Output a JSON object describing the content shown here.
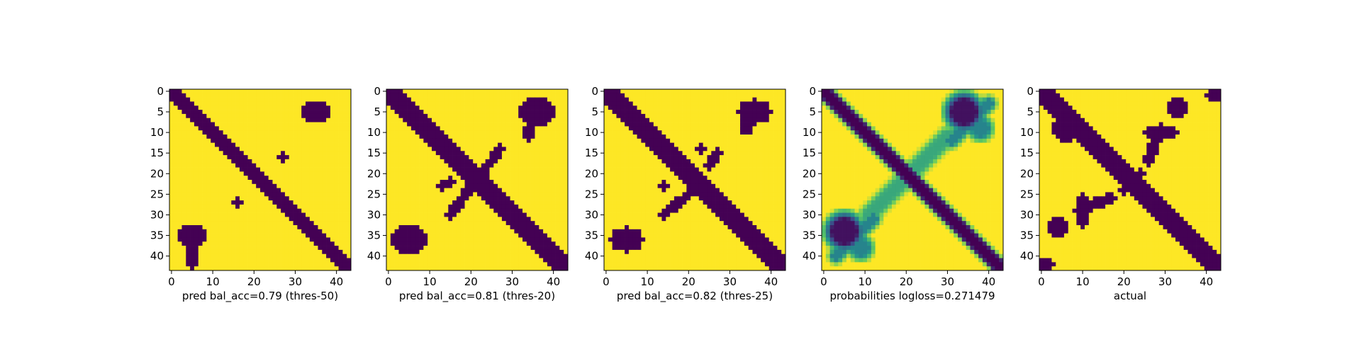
{
  "figure": {
    "background": "#ffffff"
  },
  "colors": {
    "low": "#440154",
    "high": "#fde725",
    "viridis_stops": [
      "#440154",
      "#3b528b",
      "#21918c",
      "#5ec962",
      "#fde725"
    ]
  },
  "chart_data": [
    {
      "type": "heatmap",
      "title": "pred bal_acc=0.79 (thres-50)",
      "grid_size": 44,
      "xlim": [
        0,
        43
      ],
      "ylim": [
        43,
        0
      ],
      "xticks": [
        0,
        10,
        20,
        30,
        40
      ],
      "yticks": [
        0,
        5,
        10,
        15,
        20,
        25,
        30,
        35,
        40
      ],
      "value_range": [
        0,
        1
      ],
      "diagonal_band": {
        "from": [
          0,
          0
        ],
        "to": [
          43,
          43
        ],
        "half_width": 1.6,
        "value": 0
      },
      "blobs": [
        {
          "center": [
            35,
            5
          ],
          "radius": [
            3,
            2
          ],
          "value": 0
        },
        {
          "center": [
            5,
            35
          ],
          "radius": [
            3,
            2
          ],
          "value": 0
        },
        {
          "center": [
            27,
            16
          ],
          "radius": [
            0.8,
            0.8
          ],
          "value": 0
        },
        {
          "center": [
            16,
            27
          ],
          "radius": [
            0.8,
            0.8
          ],
          "value": 0
        },
        {
          "center": [
            5,
            40
          ],
          "radius": [
            1.2,
            2.5
          ],
          "value": 0
        }
      ],
      "segments": []
    },
    {
      "type": "heatmap",
      "title": "pred bal_acc=0.81 (thres-20)",
      "grid_size": 44,
      "xlim": [
        0,
        43
      ],
      "ylim": [
        43,
        0
      ],
      "xticks": [
        0,
        10,
        20,
        30,
        40
      ],
      "yticks": [
        0,
        5,
        10,
        15,
        20,
        25,
        30,
        35,
        40
      ],
      "value_range": [
        0,
        1
      ],
      "diagonal_band": {
        "from": [
          0,
          0
        ],
        "to": [
          43,
          43
        ],
        "half_width": 2.0,
        "value": 0
      },
      "blobs": [
        {
          "center": [
            36,
            5
          ],
          "radius": [
            4,
            3
          ],
          "value": 0
        },
        {
          "center": [
            5,
            36
          ],
          "radius": [
            4,
            3
          ],
          "value": 0
        },
        {
          "center": [
            34,
            10
          ],
          "radius": [
            1,
            1.5
          ],
          "value": 0
        }
      ],
      "segments": [
        {
          "from": [
            27,
            14
          ],
          "to": [
            22,
            21
          ],
          "half_width": 0.7,
          "value": 0
        },
        {
          "from": [
            21,
            22
          ],
          "to": [
            15,
            30
          ],
          "half_width": 0.7,
          "value": 0
        },
        {
          "from": [
            15,
            22
          ],
          "to": [
            13,
            23
          ],
          "half_width": 0.7,
          "value": 0
        }
      ]
    },
    {
      "type": "heatmap",
      "title": "pred bal_acc=0.82 (thres-25)",
      "grid_size": 44,
      "xlim": [
        0,
        43
      ],
      "ylim": [
        43,
        0
      ],
      "xticks": [
        0,
        10,
        20,
        30,
        40
      ],
      "yticks": [
        0,
        5,
        10,
        15,
        20,
        25,
        30,
        35,
        40
      ],
      "value_range": [
        0,
        1
      ],
      "diagonal_band": {
        "from": [
          0,
          0
        ],
        "to": [
          43,
          43
        ],
        "half_width": 1.8,
        "value": 0
      },
      "blobs": [
        {
          "center": [
            36,
            5
          ],
          "radius": [
            3.5,
            2.5
          ],
          "value": 0
        },
        {
          "center": [
            5,
            36
          ],
          "radius": [
            3.5,
            2.5
          ],
          "value": 0
        },
        {
          "center": [
            34,
            9
          ],
          "radius": [
            1,
            1.2
          ],
          "value": 0
        }
      ],
      "segments": [
        {
          "from": [
            27,
            15
          ],
          "to": [
            25,
            18
          ],
          "half_width": 0.7,
          "value": 0
        },
        {
          "from": [
            20,
            25
          ],
          "to": [
            14,
            30
          ],
          "half_width": 0.7,
          "value": 0
        },
        {
          "from": [
            23,
            14
          ],
          "to": [
            23,
            14
          ],
          "half_width": 0.6,
          "value": 0
        },
        {
          "from": [
            14,
            23
          ],
          "to": [
            14,
            23
          ],
          "half_width": 0.6,
          "value": 0
        }
      ]
    },
    {
      "type": "heatmap",
      "title": "probabilities logloss=0.271479",
      "grid_size": 44,
      "xlim": [
        0,
        43
      ],
      "ylim": [
        43,
        0
      ],
      "xticks": [
        0,
        10,
        20,
        30,
        40
      ],
      "yticks": [
        0,
        5,
        10,
        15,
        20,
        25,
        30,
        35,
        40
      ],
      "value_range": [
        0,
        1
      ],
      "continuous": true,
      "diagonal_band": {
        "from": [
          0,
          0
        ],
        "to": [
          43,
          43
        ],
        "half_width": 1.3,
        "value": 0,
        "soft": 1.0
      },
      "blobs": [
        {
          "center": [
            34,
            5
          ],
          "radius": [
            3,
            3
          ],
          "value": 0.05,
          "soft": 3.0
        },
        {
          "center": [
            5,
            34
          ],
          "radius": [
            3,
            3
          ],
          "value": 0.05,
          "soft": 3.0
        },
        {
          "center": [
            38,
            9
          ],
          "radius": [
            2,
            2
          ],
          "value": 0.45,
          "soft": 2.0
        },
        {
          "center": [
            9,
            38
          ],
          "radius": [
            2,
            2
          ],
          "value": 0.45,
          "soft": 2.0
        }
      ],
      "segments": [
        {
          "from": [
            30,
            11
          ],
          "to": [
            11,
            30
          ],
          "half_width": 1.3,
          "value": 0.6,
          "soft": 1.8
        },
        {
          "from": [
            40,
            3
          ],
          "to": [
            31,
            12
          ],
          "half_width": 1.0,
          "value": 0.45,
          "soft": 1.5
        },
        {
          "from": [
            3,
            40
          ],
          "to": [
            12,
            31
          ],
          "half_width": 1.0,
          "value": 0.45,
          "soft": 1.5
        }
      ]
    },
    {
      "type": "heatmap",
      "title": "actual",
      "grid_size": 44,
      "xlim": [
        0,
        43
      ],
      "ylim": [
        43,
        0
      ],
      "xticks": [
        0,
        10,
        20,
        30,
        40
      ],
      "yticks": [
        0,
        5,
        10,
        15,
        20,
        25,
        30,
        35,
        40
      ],
      "value_range": [
        0,
        1
      ],
      "diagonal_band": {
        "from": [
          0,
          0
        ],
        "to": [
          43,
          43
        ],
        "half_width": 2.0,
        "value": 0
      },
      "blobs": [
        {
          "center": [
            42,
            1
          ],
          "radius": [
            1.5,
            1.2
          ],
          "value": 0
        },
        {
          "center": [
            1,
            42
          ],
          "radius": [
            1.5,
            1.2
          ],
          "value": 0
        },
        {
          "center": [
            33,
            4
          ],
          "radius": [
            2,
            2
          ],
          "value": 0
        },
        {
          "center": [
            4,
            33
          ],
          "radius": [
            2,
            2
          ],
          "value": 0
        },
        {
          "center": [
            29,
            10
          ],
          "radius": [
            3,
            1.5
          ],
          "value": 0
        },
        {
          "center": [
            10,
            29
          ],
          "radius": [
            1.5,
            3
          ],
          "value": 0
        },
        {
          "center": [
            6,
            9
          ],
          "radius": [
            3,
            3
          ],
          "value": 0
        }
      ],
      "segments": [
        {
          "from": [
            28,
            11
          ],
          "to": [
            26,
            17
          ],
          "half_width": 0.8,
          "value": 0
        },
        {
          "from": [
            11,
            28
          ],
          "to": [
            17,
            26
          ],
          "half_width": 0.8,
          "value": 0
        },
        {
          "from": [
            20,
            24
          ],
          "to": [
            22,
            20
          ],
          "half_width": 0.8,
          "value": 0
        },
        {
          "from": [
            24,
            20
          ],
          "to": [
            20,
            22
          ],
          "half_width": 0.8,
          "value": 0
        }
      ]
    }
  ]
}
